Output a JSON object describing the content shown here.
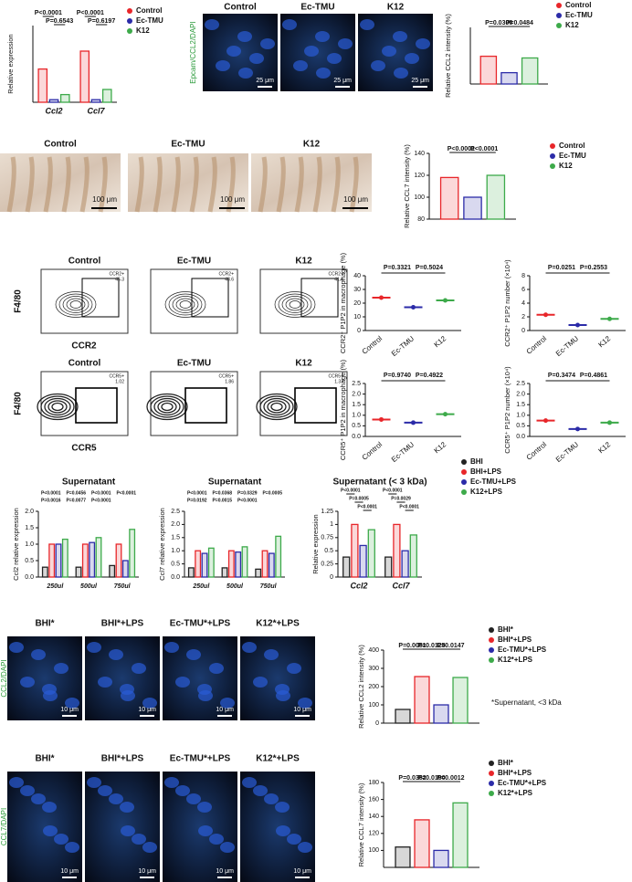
{
  "chart_data": [
    {
      "type": "bar",
      "ylabel": "Relative expression",
      "categories": [
        "Ccl2",
        "Ccl7"
      ],
      "ylim": [
        0,
        30
      ],
      "legend": true,
      "series": [
        {
          "name": "Control",
          "color": "#e8262a",
          "values": [
            13,
            20
          ]
        },
        {
          "name": "Ec-TMU",
          "color": "#2b2ba8",
          "values": [
            1,
            1
          ]
        },
        {
          "name": "K12",
          "color": "#3daa4a",
          "values": [
            3,
            5
          ]
        }
      ],
      "annotations": [
        "P<0.0001",
        "P=0.6543",
        "P<0.0001",
        "P=0.6197"
      ]
    },
    {
      "type": "bar",
      "ylabel": "Relative CCL2 intensity (%)",
      "ylim": [
        0,
        500
      ],
      "legend": true,
      "series": [
        {
          "name": "Control",
          "color": "#e8262a",
          "values": [
            245
          ]
        },
        {
          "name": "Ec-TMU",
          "color": "#2b2ba8",
          "values": [
            100
          ]
        },
        {
          "name": "K12",
          "color": "#3daa4a",
          "values": [
            230
          ]
        }
      ],
      "annotations": [
        "P=0.0306",
        "P=0.0484"
      ]
    },
    {
      "type": "bar",
      "ylabel": "Relative CCL7 intensity (%)",
      "ylim": [
        80,
        140
      ],
      "yticks": [
        80,
        100,
        120,
        140
      ],
      "legend": true,
      "series": [
        {
          "name": "Control",
          "color": "#e8262a",
          "values": [
            118
          ]
        },
        {
          "name": "Ec-TMU",
          "color": "#2b2ba8",
          "values": [
            100
          ]
        },
        {
          "name": "K12",
          "color": "#3daa4a",
          "values": [
            120
          ]
        }
      ],
      "annotations": [
        "P<0.0001",
        "P<0.0001"
      ]
    },
    {
      "type": "dot",
      "ylabel": "CCR2⁺ P1P2 in macrophage (%)",
      "categories": [
        "Control",
        "Ec-TMU",
        "K12"
      ],
      "values": [
        24,
        17,
        22
      ],
      "colors": [
        "#e8262a",
        "#2b2ba8",
        "#3daa4a"
      ],
      "ylim": [
        0,
        40
      ],
      "yticks": [
        0,
        10,
        20,
        30,
        40
      ],
      "annotations": [
        "P=0.3321",
        "P=0.5024"
      ]
    },
    {
      "type": "dot",
      "ylabel": "CCR2⁺ P1P2 number (×10⁴)",
      "categories": [
        "Control",
        "Ec-TMU",
        "K12"
      ],
      "values": [
        2.3,
        0.8,
        1.7
      ],
      "colors": [
        "#e8262a",
        "#2b2ba8",
        "#3daa4a"
      ],
      "ylim": [
        0,
        8
      ],
      "yticks": [
        0,
        2,
        4,
        6,
        8
      ],
      "annotations": [
        "P=0.0251",
        "P=0.2553"
      ]
    },
    {
      "type": "dot",
      "ylabel": "CCR5⁺ P1P2 in macrophage (%)",
      "categories": [
        "Control",
        "Ec-TMU",
        "K12"
      ],
      "values": [
        0.8,
        0.65,
        1.05
      ],
      "colors": [
        "#e8262a",
        "#2b2ba8",
        "#3daa4a"
      ],
      "ylim": [
        0,
        2.5
      ],
      "yticks": [
        {
          "value": 0,
          "label": "0.0"
        },
        0.5,
        {
          "value": 1,
          "label": "1.0"
        },
        1.5,
        {
          "value": 2,
          "label": "2.0"
        },
        2.5
      ],
      "annotations": [
        "P=0.9740",
        "P=0.4922"
      ]
    },
    {
      "type": "dot",
      "ylabel": "CCR5⁺ P1P2 number (×10⁴)",
      "categories": [
        "Control",
        "Ec-TMU",
        "K12"
      ],
      "values": [
        0.75,
        0.35,
        0.65
      ],
      "colors": [
        "#e8262a",
        "#2b2ba8",
        "#3daa4a"
      ],
      "ylim": [
        0,
        2.5
      ],
      "yticks": [
        {
          "value": 0,
          "label": "0.0"
        },
        0.5,
        {
          "value": 1,
          "label": "1.0"
        },
        1.5,
        {
          "value": 2,
          "label": "2.0"
        },
        2.5
      ],
      "annotations": [
        "P=0.3474",
        "P=0.4861"
      ]
    },
    {
      "type": "bar",
      "title": "Supernatant",
      "ylabel": "Ccl2 relative expression",
      "categories": [
        "250ul",
        "500ul",
        "750ul"
      ],
      "ylim": [
        0,
        2
      ],
      "yticks": [
        {
          "value": 0,
          "label": "0.0"
        },
        0.5,
        {
          "value": 1,
          "label": "1.0"
        },
        1.5,
        {
          "value": 2,
          "label": "2.0"
        }
      ],
      "series": [
        {
          "color": "#222222",
          "values": [
            0.3,
            0.3,
            0.35
          ]
        },
        {
          "color": "#e8262a",
          "values": [
            1.0,
            1.0,
            1.0
          ]
        },
        {
          "color": "#2b2ba8",
          "values": [
            1.0,
            1.05,
            0.5
          ]
        },
        {
          "color": "#3daa4a",
          "values": [
            1.15,
            1.2,
            1.45
          ]
        }
      ],
      "annotations": [
        "P<0.0001",
        "P=0.0456",
        "P<0.0001",
        "P<0.0001",
        "P=0.0016",
        "P=0.0077",
        "P<0.0001"
      ]
    },
    {
      "type": "bar",
      "title": "Supernatant",
      "ylabel": "Ccl7 relative expression",
      "categories": [
        "250ul",
        "500ul",
        "750ul"
      ],
      "ylim": [
        0,
        2.5
      ],
      "yticks": [
        {
          "value": 0,
          "label": "0.0"
        },
        0.5,
        {
          "value": 1,
          "label": "1.0"
        },
        1.5,
        {
          "value": 2,
          "label": "2.0"
        },
        2.5
      ],
      "series": [
        {
          "color": "#222222",
          "values": [
            0.35,
            0.35,
            0.3
          ]
        },
        {
          "color": "#e8262a",
          "values": [
            1.0,
            1.0,
            1.0
          ]
        },
        {
          "color": "#2b2ba8",
          "values": [
            0.9,
            0.95,
            0.9
          ]
        },
        {
          "color": "#3daa4a",
          "values": [
            1.1,
            1.15,
            1.55
          ]
        }
      ],
      "annotations": [
        "P<0.0001",
        "P=0.0368",
        "P=0.0329",
        "P=0.0005",
        "P=0.0192",
        "P=0.0015",
        "P<0.0001"
      ]
    },
    {
      "type": "bar",
      "title": "Supernatant (< 3 kDa)",
      "ylabel": "Relative expression",
      "categories": [
        "Ccl2",
        "Ccl7"
      ],
      "ylim": [
        0,
        1.25
      ],
      "yticks": [
        0,
        0.25,
        0.5,
        0.75,
        1,
        1.25
      ],
      "legend": true,
      "series": [
        {
          "name": "BHI",
          "color": "#222222",
          "values": [
            0.38,
            0.38
          ]
        },
        {
          "name": "BHI+LPS",
          "color": "#e8262a",
          "values": [
            1.0,
            1.0
          ]
        },
        {
          "name": "Ec-TMU+LPS",
          "color": "#2b2ba8",
          "values": [
            0.6,
            0.5
          ]
        },
        {
          "name": "K12+LPS",
          "color": "#3daa4a",
          "values": [
            0.9,
            0.8
          ]
        }
      ],
      "annotations": [
        "P<0.0001",
        "P=0.0005",
        "P<0.0001",
        "P<0.0001",
        "P=0.0029",
        "P<0.0001"
      ]
    },
    {
      "type": "bar",
      "ylabel": "Relative CCL2 intensity (%)",
      "ylim": [
        0,
        400
      ],
      "yticks": [
        0,
        100,
        200,
        300,
        400
      ],
      "legend": true,
      "series": [
        {
          "name": "BHI*",
          "color": "#222222",
          "values": [
            75
          ]
        },
        {
          "name": "BHI*+LPS",
          "color": "#e8262a",
          "values": [
            255
          ]
        },
        {
          "name": "Ec-TMU*+LPS",
          "color": "#2b2ba8",
          "values": [
            100
          ]
        },
        {
          "name": "K12*+LPS",
          "color": "#3daa4a",
          "values": [
            250
          ]
        }
      ],
      "annotations": [
        "P=0.0051",
        "P=0.0125",
        "P=0.0147"
      ]
    },
    {
      "type": "bar",
      "ylabel": "Relative CCL7 intensity (%)",
      "ylim": [
        80,
        180
      ],
      "yticks": [
        100,
        120,
        140,
        160,
        180
      ],
      "legend": true,
      "series": [
        {
          "name": "BHI*",
          "color": "#222222",
          "values": [
            104
          ]
        },
        {
          "name": "BHI*+LPS",
          "color": "#e8262a",
          "values": [
            136
          ]
        },
        {
          "name": "Ec-TMU*+LPS",
          "color": "#2b2ba8",
          "values": [
            100
          ]
        },
        {
          "name": "K12*+LPS",
          "color": "#3daa4a",
          "values": [
            156
          ]
        }
      ],
      "annotations": [
        "P=0.0352",
        "P=0.0190",
        "P=0.0012"
      ]
    }
  ],
  "figure": {
    "if_colon": {
      "labels": [
        "Control",
        "Ec-TMU",
        "K12"
      ],
      "scale_bar": "25 μm",
      "stain": "Epcam/CCL2/DAPI"
    },
    "ihc": {
      "labels": [
        "Control",
        "Ec-TMU",
        "K12"
      ],
      "scale_bar": "100 μm"
    },
    "flow": {
      "labels": [
        "Control",
        "Ec-TMU",
        "K12"
      ],
      "y_label": "F4/80",
      "rows": [
        {
          "x_label": "CCR2",
          "gate": "CCR2+",
          "gate_values": [
            "45.3",
            "43.6",
            "41.6"
          ]
        },
        {
          "x_label": "CCR5",
          "gate": "CCR5+",
          "gate_values": [
            "1.02",
            "1.86",
            "1.33"
          ]
        }
      ]
    },
    "if_ccl2": {
      "labels": [
        "BHI*",
        "BHI*+LPS",
        "Ec-TMU*+LPS",
        "K12*+LPS"
      ],
      "scale_bar": "10 μm",
      "stain": "CCL2/DAPI"
    },
    "if_ccl7": {
      "labels": [
        "BHI*",
        "BHI*+LPS",
        "Ec-TMU*+LPS",
        "K12*+LPS"
      ],
      "scale_bar": "10 μm",
      "stain": "CCL7/DAPI"
    },
    "note": "*Supernatant, <3 kDa"
  }
}
